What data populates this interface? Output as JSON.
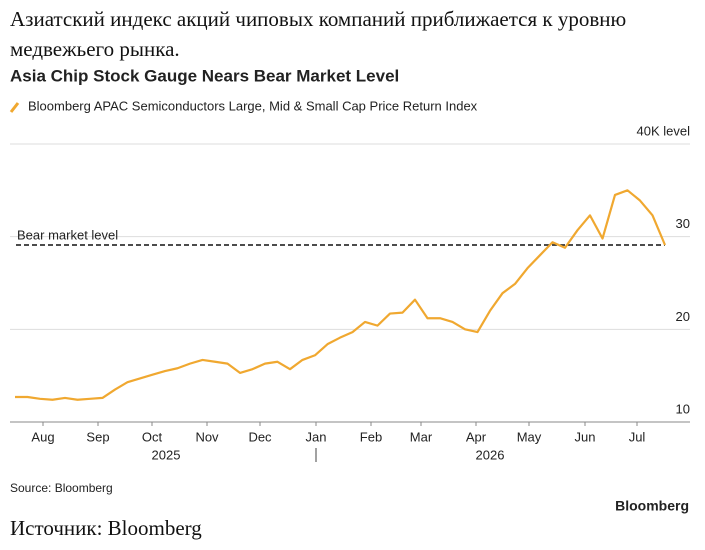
{
  "headline": "Азиатский индекс акций чиповых компаний приближается к уровню медвежьего рынка.",
  "chart_data": {
    "type": "line",
    "title": "Asia Chip Stock Gauge Nears Bear Market Level",
    "series": [
      {
        "name": "Bloomberg APAC Semiconductors Large, Mid & Small Cap Price Return Index",
        "color": "#f0a830",
        "values": [
          12.7,
          12.7,
          12.5,
          12.4,
          12.6,
          12.4,
          12.5,
          12.6,
          13.5,
          14.3,
          14.7,
          15.1,
          15.5,
          15.8,
          16.3,
          16.7,
          16.5,
          16.3,
          15.3,
          15.7,
          16.3,
          16.5,
          15.7,
          16.7,
          17.2,
          18.4,
          19.1,
          19.7,
          20.8,
          20.4,
          21.7,
          21.8,
          23.2,
          21.2,
          21.2,
          20.8,
          20.0,
          19.7,
          22.0,
          23.9,
          24.9,
          26.6,
          28.0,
          29.4,
          28.8,
          30.7,
          32.3,
          29.8,
          34.5,
          35.0,
          33.9,
          32.3,
          29.1
        ]
      }
    ],
    "xlim": [
      0,
      52
    ],
    "xticks": [
      {
        "value": 2.24,
        "label": "Aug"
      },
      {
        "value": 6.64,
        "label": "Sep"
      },
      {
        "value": 10.96,
        "label": "Oct"
      },
      {
        "value": 15.36,
        "label": "Nov"
      },
      {
        "value": 19.6,
        "label": "Dec"
      },
      {
        "value": 24.08,
        "label": "Jan"
      },
      {
        "value": 28.48,
        "label": "Feb"
      },
      {
        "value": 32.48,
        "label": "Mar"
      },
      {
        "value": 36.88,
        "label": "Apr"
      },
      {
        "value": 41.12,
        "label": "May"
      },
      {
        "value": 45.6,
        "label": "Jun"
      },
      {
        "value": 49.76,
        "label": "Jul"
      }
    ],
    "year_ticks": [
      {
        "value": 12.08,
        "label": "2025"
      },
      {
        "value": 38.0,
        "label": "2026"
      }
    ],
    "ylim": [
      10,
      40
    ],
    "yticks": [
      10,
      20,
      30,
      {
        "value": 40,
        "label": "40K level"
      }
    ],
    "grid": true,
    "reference_line": {
      "label": "Bear market level",
      "value": 29.1
    },
    "source": "Source: Bloomberg",
    "logo": "Bloomberg"
  },
  "caption": "Источник: Bloomberg"
}
